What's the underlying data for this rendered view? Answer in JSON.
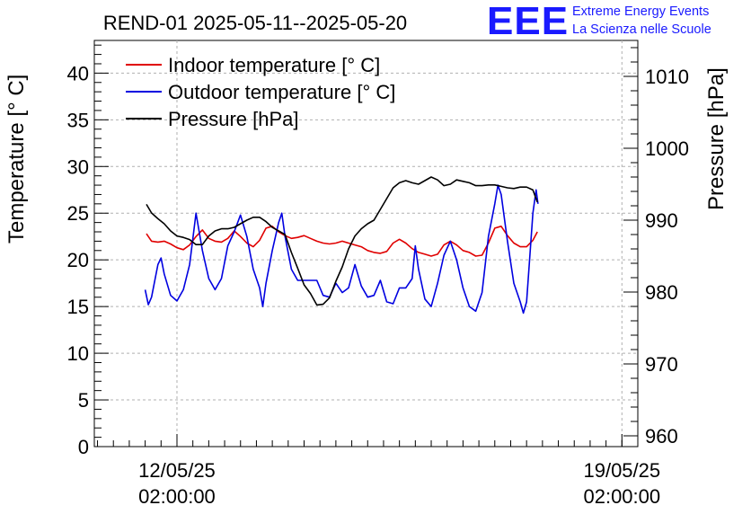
{
  "chart_data": {
    "type": "line",
    "title": "REND-01 2025-05-11--2025-05-20",
    "ylabel": "Temperature [° C]",
    "y2label": "Pressure [hPa]",
    "xlabel": "",
    "ylim": [
      0,
      43.5
    ],
    "y2lim": [
      958.5,
      1015
    ],
    "xlim": [
      10.7,
      19.25
    ],
    "x_ticks": [
      {
        "x": 12.0,
        "line1": "12/05/25",
        "line2": "02:00:00"
      },
      {
        "x": 19.0,
        "line1": "19/05/25",
        "line2": "02:00:00"
      }
    ],
    "y_ticks": [
      0,
      5,
      10,
      15,
      20,
      25,
      30,
      35,
      40
    ],
    "y2_ticks": [
      960,
      970,
      980,
      990,
      1000,
      1010
    ],
    "grid": true,
    "legend_placement": "top-left",
    "series": [
      {
        "name": "Indoor temperature [° C]",
        "color": "#e00000",
        "axis": "left",
        "points": [
          [
            11.52,
            22.8
          ],
          [
            11.6,
            22.0
          ],
          [
            11.7,
            21.9
          ],
          [
            11.8,
            22.0
          ],
          [
            11.9,
            21.7
          ],
          [
            12.0,
            21.3
          ],
          [
            12.1,
            21.1
          ],
          [
            12.2,
            21.6
          ],
          [
            12.3,
            22.5
          ],
          [
            12.4,
            23.2
          ],
          [
            12.5,
            22.3
          ],
          [
            12.6,
            22.0
          ],
          [
            12.7,
            21.9
          ],
          [
            12.8,
            22.3
          ],
          [
            12.9,
            23.1
          ],
          [
            13.0,
            22.5
          ],
          [
            13.1,
            21.8
          ],
          [
            13.2,
            21.4
          ],
          [
            13.3,
            22.1
          ],
          [
            13.4,
            23.4
          ],
          [
            13.5,
            23.6
          ],
          [
            13.6,
            23.0
          ],
          [
            13.7,
            22.6
          ],
          [
            13.8,
            22.3
          ],
          [
            13.9,
            22.4
          ],
          [
            14.0,
            22.6
          ],
          [
            14.1,
            22.3
          ],
          [
            14.2,
            22.0
          ],
          [
            14.3,
            21.8
          ],
          [
            14.4,
            21.7
          ],
          [
            14.5,
            21.8
          ],
          [
            14.6,
            22.0
          ],
          [
            14.7,
            21.8
          ],
          [
            14.8,
            21.6
          ],
          [
            14.9,
            21.4
          ],
          [
            15.0,
            21.0
          ],
          [
            15.1,
            20.8
          ],
          [
            15.2,
            20.7
          ],
          [
            15.3,
            20.9
          ],
          [
            15.4,
            21.8
          ],
          [
            15.5,
            22.2
          ],
          [
            15.6,
            21.8
          ],
          [
            15.7,
            21.2
          ],
          [
            15.8,
            20.8
          ],
          [
            15.9,
            20.6
          ],
          [
            16.0,
            20.4
          ],
          [
            16.1,
            20.6
          ],
          [
            16.2,
            21.6
          ],
          [
            16.3,
            22.0
          ],
          [
            16.4,
            21.6
          ],
          [
            16.5,
            21.0
          ],
          [
            16.6,
            20.8
          ],
          [
            16.7,
            20.4
          ],
          [
            16.8,
            20.5
          ],
          [
            16.9,
            21.8
          ],
          [
            17.0,
            23.4
          ],
          [
            17.1,
            23.6
          ],
          [
            17.2,
            22.6
          ],
          [
            17.3,
            21.8
          ],
          [
            17.4,
            21.4
          ],
          [
            17.5,
            21.4
          ],
          [
            17.6,
            22.1
          ],
          [
            17.67,
            23.0
          ]
        ]
      },
      {
        "name": "Outdoor temperature [° C]",
        "color": "#0000e0",
        "axis": "left",
        "points": [
          [
            11.5,
            16.8
          ],
          [
            11.55,
            15.2
          ],
          [
            11.6,
            16.0
          ],
          [
            11.7,
            19.5
          ],
          [
            11.75,
            20.2
          ],
          [
            11.8,
            18.5
          ],
          [
            11.9,
            16.2
          ],
          [
            12.0,
            15.6
          ],
          [
            12.1,
            16.8
          ],
          [
            12.2,
            19.5
          ],
          [
            12.3,
            25.0
          ],
          [
            12.4,
            21.0
          ],
          [
            12.5,
            18.0
          ],
          [
            12.6,
            16.8
          ],
          [
            12.7,
            18.0
          ],
          [
            12.8,
            21.5
          ],
          [
            12.9,
            23.0
          ],
          [
            13.0,
            24.8
          ],
          [
            13.1,
            22.5
          ],
          [
            13.2,
            19.0
          ],
          [
            13.3,
            17.0
          ],
          [
            13.35,
            15.0
          ],
          [
            13.4,
            17.5
          ],
          [
            13.5,
            21.0
          ],
          [
            13.6,
            24.0
          ],
          [
            13.65,
            25.0
          ],
          [
            13.7,
            22.5
          ],
          [
            13.8,
            19.0
          ],
          [
            13.9,
            17.8
          ],
          [
            14.0,
            17.8
          ],
          [
            14.1,
            17.8
          ],
          [
            14.2,
            17.8
          ],
          [
            14.3,
            16.2
          ],
          [
            14.4,
            16.0
          ],
          [
            14.5,
            17.5
          ],
          [
            14.6,
            16.5
          ],
          [
            14.7,
            17.0
          ],
          [
            14.8,
            19.5
          ],
          [
            14.9,
            17.2
          ],
          [
            15.0,
            16.0
          ],
          [
            15.1,
            16.2
          ],
          [
            15.2,
            17.8
          ],
          [
            15.3,
            15.5
          ],
          [
            15.4,
            15.3
          ],
          [
            15.5,
            17.0
          ],
          [
            15.6,
            17.0
          ],
          [
            15.7,
            18.0
          ],
          [
            15.75,
            21.5
          ],
          [
            15.8,
            19.0
          ],
          [
            15.9,
            15.8
          ],
          [
            16.0,
            15.0
          ],
          [
            16.1,
            17.5
          ],
          [
            16.2,
            20.5
          ],
          [
            16.3,
            22.0
          ],
          [
            16.4,
            20.0
          ],
          [
            16.5,
            17.0
          ],
          [
            16.6,
            15.0
          ],
          [
            16.7,
            14.5
          ],
          [
            16.8,
            16.5
          ],
          [
            16.9,
            22.5
          ],
          [
            17.0,
            26.0
          ],
          [
            17.05,
            28.0
          ],
          [
            17.1,
            27.0
          ],
          [
            17.2,
            22.0
          ],
          [
            17.3,
            17.5
          ],
          [
            17.4,
            15.5
          ],
          [
            17.45,
            14.3
          ],
          [
            17.5,
            15.5
          ],
          [
            17.6,
            25.0
          ],
          [
            17.65,
            27.5
          ],
          [
            17.68,
            26.0
          ]
        ]
      },
      {
        "name": "Pressure [hPa]",
        "color": "#000000",
        "axis": "right",
        "points": [
          [
            11.52,
            992.2
          ],
          [
            11.6,
            991.0
          ],
          [
            11.7,
            990.2
          ],
          [
            11.8,
            989.5
          ],
          [
            11.9,
            988.5
          ],
          [
            12.0,
            987.8
          ],
          [
            12.1,
            987.6
          ],
          [
            12.2,
            987.3
          ],
          [
            12.3,
            986.6
          ],
          [
            12.4,
            986.6
          ],
          [
            12.5,
            987.8
          ],
          [
            12.6,
            988.5
          ],
          [
            12.7,
            988.8
          ],
          [
            12.8,
            988.8
          ],
          [
            12.9,
            989.0
          ],
          [
            13.0,
            989.5
          ],
          [
            13.1,
            990.0
          ],
          [
            13.2,
            990.4
          ],
          [
            13.3,
            990.4
          ],
          [
            13.4,
            989.8
          ],
          [
            13.5,
            989.0
          ],
          [
            13.6,
            988.5
          ],
          [
            13.7,
            988.0
          ],
          [
            13.8,
            985.5
          ],
          [
            13.9,
            983.3
          ],
          [
            14.0,
            981.0
          ],
          [
            14.1,
            979.8
          ],
          [
            14.2,
            978.2
          ],
          [
            14.3,
            978.3
          ],
          [
            14.4,
            979.2
          ],
          [
            14.5,
            981.5
          ],
          [
            14.6,
            983.5
          ],
          [
            14.7,
            986.0
          ],
          [
            14.8,
            987.8
          ],
          [
            14.9,
            988.8
          ],
          [
            15.0,
            989.5
          ],
          [
            15.1,
            990.0
          ],
          [
            15.2,
            991.5
          ],
          [
            15.3,
            993.0
          ],
          [
            15.4,
            994.5
          ],
          [
            15.5,
            995.2
          ],
          [
            15.6,
            995.5
          ],
          [
            15.7,
            995.2
          ],
          [
            15.8,
            995.0
          ],
          [
            15.9,
            995.5
          ],
          [
            16.0,
            996.0
          ],
          [
            16.1,
            995.6
          ],
          [
            16.2,
            994.8
          ],
          [
            16.3,
            995.0
          ],
          [
            16.4,
            995.6
          ],
          [
            16.5,
            995.4
          ],
          [
            16.6,
            995.2
          ],
          [
            16.7,
            994.8
          ],
          [
            16.8,
            994.8
          ],
          [
            16.9,
            994.9
          ],
          [
            17.0,
            994.9
          ],
          [
            17.1,
            994.7
          ],
          [
            17.2,
            994.5
          ],
          [
            17.3,
            994.4
          ],
          [
            17.4,
            994.6
          ],
          [
            17.5,
            994.6
          ],
          [
            17.6,
            994.2
          ],
          [
            17.67,
            992.5
          ]
        ]
      }
    ]
  },
  "logo": {
    "mark": "EEE",
    "line1": "Extreme Energy Events",
    "line2": "La Scienza nelle Scuole",
    "color": "#1a1aff"
  }
}
